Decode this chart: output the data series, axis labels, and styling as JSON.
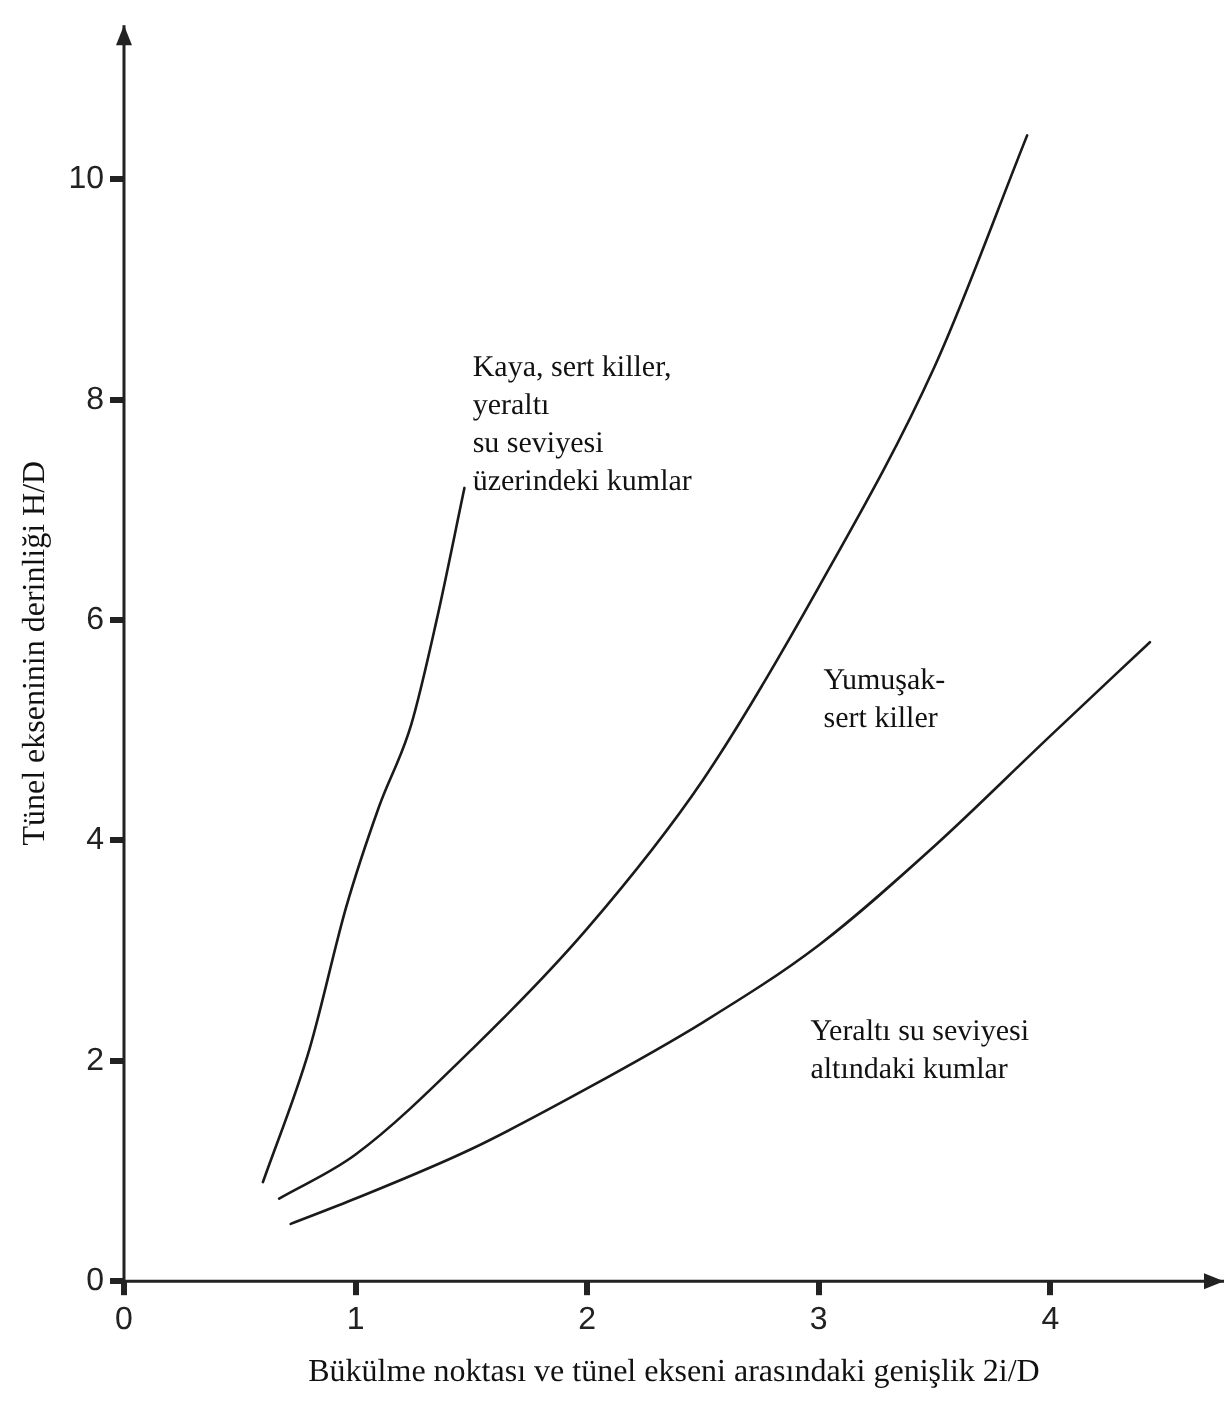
{
  "chart_data": {
    "type": "line",
    "xlabel": "Bükülme noktası ve tünel ekseni arasındaki genişlik 2i/D",
    "ylabel": "Tünel ekseninin derinliği H/D",
    "xlim": [
      0,
      4.75
    ],
    "ylim": [
      0,
      11.4
    ],
    "xticks": [
      0,
      1,
      2,
      3,
      4
    ],
    "yticks": [
      0,
      2,
      4,
      6,
      8,
      10
    ],
    "grid": false,
    "legend": false,
    "marker": "none",
    "line_style": "solid",
    "series": [
      {
        "color": "#1a1a1a",
        "x": [
          0.6,
          0.8,
          0.96,
          1.1,
          1.24,
          1.35,
          1.47
        ],
        "values": [
          0.9,
          2.1,
          3.4,
          4.3,
          5.05,
          6.0,
          7.2
        ]
      },
      {
        "color": "#1a1a1a",
        "x": [
          0.67,
          1.0,
          1.5,
          2.0,
          2.5,
          3.0,
          3.5,
          3.9
        ],
        "values": [
          0.75,
          1.15,
          2.1,
          3.2,
          4.55,
          6.3,
          8.3,
          10.4
        ]
      },
      {
        "color": "#1a1a1a",
        "x": [
          0.72,
          1.0,
          1.5,
          2.0,
          2.5,
          3.0,
          3.5,
          4.0,
          4.43
        ],
        "values": [
          0.52,
          0.75,
          1.2,
          1.75,
          2.35,
          3.05,
          3.95,
          4.95,
          5.8
        ]
      }
    ],
    "annotations": [
      "Kaya, sert killer,\nyeraltı\nsu seviyesi\nüzerindeki kumlar",
      "Yumuşak-\nsert killer",
      "Yeraltı su seviyesi\naltındaki kumlar"
    ]
  }
}
